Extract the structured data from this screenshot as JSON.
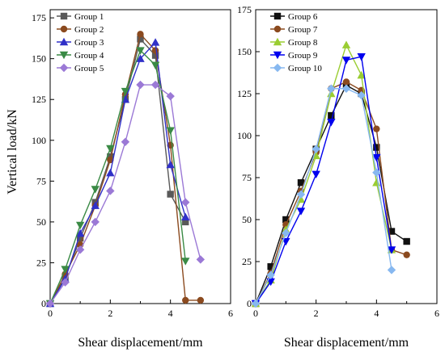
{
  "figure": {
    "ylabel": "Vertical load/kN"
  },
  "chart_data": [
    {
      "type": "line",
      "xlabel": "Shear displacement/mm",
      "ylabel": "Vertical load/kN",
      "xlim": [
        0,
        6
      ],
      "ylim": [
        0,
        180
      ],
      "xticks": [
        0,
        2,
        4,
        6
      ],
      "yticks": [
        0,
        25,
        50,
        75,
        100,
        125,
        150,
        175
      ],
      "legend_position": "top-left",
      "series": [
        {
          "name": "Group 1",
          "color": "#595959",
          "marker": "square",
          "x": [
            0,
            0.5,
            1.0,
            1.5,
            2.0,
            2.5,
            3.0,
            3.5,
            4.0,
            4.5
          ],
          "y": [
            0,
            16,
            40,
            62,
            90,
            125,
            162,
            152,
            67,
            50
          ]
        },
        {
          "name": "Group 2",
          "color": "#8b4a1f",
          "marker": "circle",
          "x": [
            0,
            0.5,
            1.0,
            1.5,
            2.0,
            2.5,
            3.0,
            3.5,
            4.0,
            4.5,
            5.0
          ],
          "y": [
            0,
            18,
            36,
            60,
            88,
            128,
            165,
            155,
            97,
            2,
            2
          ]
        },
        {
          "name": "Group 3",
          "color": "#3030c8",
          "marker": "triangle-up",
          "x": [
            0,
            0.5,
            1.0,
            1.5,
            2.0,
            2.5,
            3.0,
            3.5,
            4.0,
            4.5
          ],
          "y": [
            0,
            15,
            43,
            60,
            80,
            125,
            150,
            160,
            85,
            53
          ]
        },
        {
          "name": "Group 4",
          "color": "#3a8a45",
          "marker": "triangle-down",
          "x": [
            0,
            0.5,
            1.0,
            1.5,
            2.0,
            2.5,
            3.0,
            3.5,
            4.0,
            4.5
          ],
          "y": [
            0,
            21,
            48,
            70,
            95,
            130,
            155,
            146,
            106,
            26
          ]
        },
        {
          "name": "Group 5",
          "color": "#9b79d6",
          "marker": "diamond",
          "x": [
            0,
            0.5,
            1.0,
            1.5,
            2.0,
            2.5,
            3.0,
            3.5,
            4.0,
            4.5,
            5.0
          ],
          "y": [
            0,
            13,
            33,
            50,
            69,
            99,
            134,
            134,
            127,
            62,
            27
          ]
        }
      ]
    },
    {
      "type": "line",
      "xlabel": "Shear displacement/mm",
      "ylabel": "",
      "xlim": [
        0,
        6
      ],
      "ylim": [
        0,
        175
      ],
      "xticks": [
        0,
        2,
        4,
        6
      ],
      "yticks": [
        0,
        25,
        50,
        75,
        100,
        125,
        150,
        175
      ],
      "legend_position": "top-left",
      "series": [
        {
          "name": "Group 6",
          "color": "#111111",
          "marker": "square",
          "x": [
            0,
            0.5,
            1.0,
            1.5,
            2.0,
            2.5,
            3.0,
            3.5,
            4.0,
            4.5,
            5.0
          ],
          "y": [
            0,
            22,
            50,
            72,
            92,
            112,
            130,
            125,
            93,
            43,
            37
          ]
        },
        {
          "name": "Group 7",
          "color": "#8b4a1f",
          "marker": "circle",
          "x": [
            0,
            0.5,
            1.0,
            1.5,
            2.0,
            2.5,
            3.0,
            3.5,
            4.0,
            4.5,
            5.0
          ],
          "y": [
            0,
            18,
            47,
            67,
            90,
            128,
            132,
            127,
            104,
            32,
            29
          ]
        },
        {
          "name": "Group 8",
          "color": "#9acd32",
          "marker": "triangle-up",
          "x": [
            0,
            0.5,
            1.0,
            1.5,
            2.0,
            2.5,
            3.0,
            3.5,
            4.0,
            4.5
          ],
          "y": [
            0,
            14,
            44,
            62,
            88,
            125,
            154,
            136,
            72,
            32
          ]
        },
        {
          "name": "Group 9",
          "color": "#0000ee",
          "marker": "triangle-down",
          "x": [
            0,
            0.5,
            1.0,
            1.5,
            2.0,
            2.5,
            3.0,
            3.5,
            4.0,
            4.5
          ],
          "y": [
            0,
            13,
            37,
            55,
            77,
            108,
            145,
            147,
            87,
            32
          ]
        },
        {
          "name": "Group 10",
          "color": "#87b8f0",
          "marker": "diamond",
          "x": [
            0,
            0.5,
            1.0,
            1.5,
            2.0,
            2.5,
            3.0,
            3.5,
            4.0,
            4.5
          ],
          "y": [
            0,
            17,
            42,
            65,
            92,
            128,
            128,
            124,
            78,
            20
          ]
        }
      ]
    }
  ]
}
